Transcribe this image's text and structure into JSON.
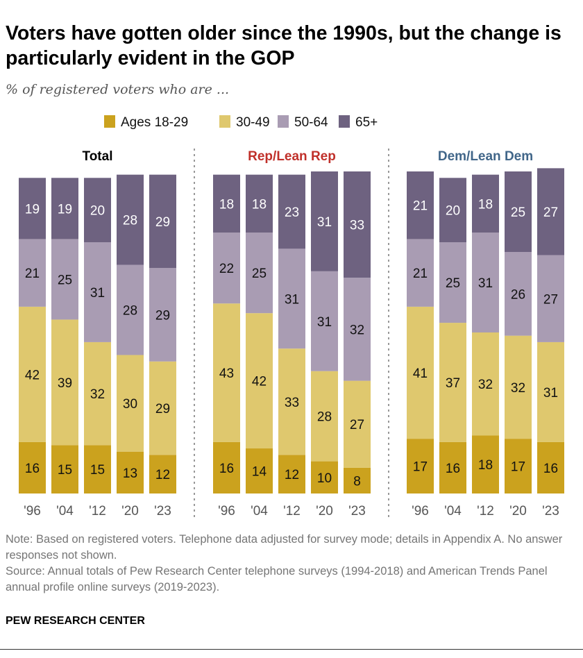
{
  "title": "Voters have gotten older since the 1990s, but the change is particularly evident in the GOP",
  "subtitle": "% of registered voters who are ...",
  "note": "Note: Based on registered voters. Telephone data adjusted for survey mode; details in Appendix A. No answer responses not shown.",
  "source": "Source: Annual totals of Pew Research Center telephone surveys (1994-2018) and American Trends Panel annual profile online surveys (2019-2023).",
  "brand": "PEW RESEARCH CENTER",
  "chart_data": {
    "type": "bar",
    "stacked": true,
    "legend": [
      "Ages 18-29",
      "30-49",
      "50-64",
      "65+"
    ],
    "legend_position": "top",
    "colors": [
      "#cba21e",
      "#dfc86e",
      "#a99cb3",
      "#6e6280"
    ],
    "categories": [
      "'96",
      "'04",
      "'12",
      "'20",
      "'23"
    ],
    "panels": [
      {
        "title": "Total",
        "title_color": "#000000",
        "series": [
          {
            "name": "Ages 18-29",
            "values": [
              16,
              15,
              15,
              13,
              12
            ]
          },
          {
            "name": "30-49",
            "values": [
              42,
              39,
              32,
              30,
              29
            ]
          },
          {
            "name": "50-64",
            "values": [
              21,
              25,
              31,
              28,
              29
            ]
          },
          {
            "name": "65+",
            "values": [
              19,
              19,
              20,
              28,
              29
            ]
          }
        ]
      },
      {
        "title": "Rep/Lean Rep",
        "title_color": "#c0302a",
        "series": [
          {
            "name": "Ages 18-29",
            "values": [
              16,
              14,
              12,
              10,
              8
            ]
          },
          {
            "name": "30-49",
            "values": [
              43,
              42,
              33,
              28,
              27
            ]
          },
          {
            "name": "50-64",
            "values": [
              22,
              25,
              31,
              31,
              32
            ]
          },
          {
            "name": "65+",
            "values": [
              18,
              18,
              23,
              31,
              33
            ]
          }
        ]
      },
      {
        "title": "Dem/Lean Dem",
        "title_color": "#416689",
        "series": [
          {
            "name": "Ages 18-29",
            "values": [
              17,
              16,
              18,
              17,
              16
            ]
          },
          {
            "name": "30-49",
            "values": [
              41,
              37,
              32,
              32,
              31
            ]
          },
          {
            "name": "50-64",
            "values": [
              21,
              25,
              31,
              26,
              27
            ]
          },
          {
            "name": "65+",
            "values": [
              21,
              20,
              18,
              25,
              27
            ]
          }
        ]
      }
    ]
  }
}
